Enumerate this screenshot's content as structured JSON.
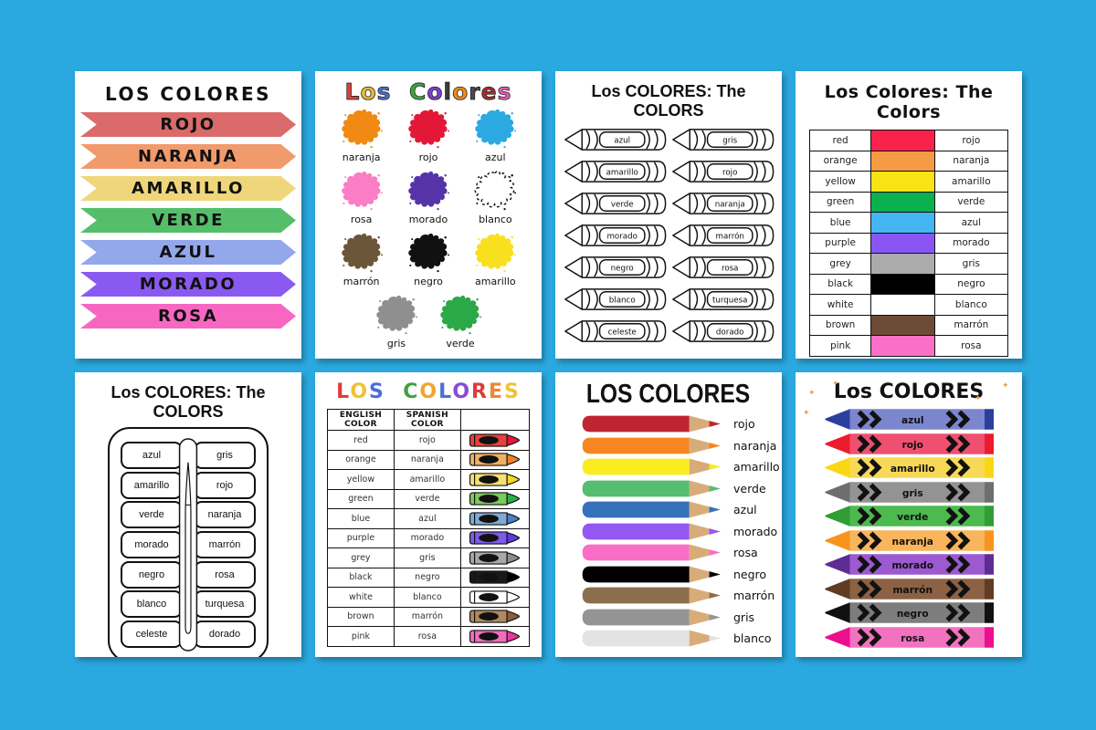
{
  "canvas": {
    "background": "#2AA9E0",
    "card_background": "#FFFFFF"
  },
  "page1": {
    "title": "LOS COLORES",
    "items": [
      {
        "label": "ROJO",
        "color": "#DB6B6B"
      },
      {
        "label": "NARANJA",
        "color": "#F19A6C"
      },
      {
        "label": "AMARILLO",
        "color": "#EFD67B"
      },
      {
        "label": "VERDE",
        "color": "#55BE6B"
      },
      {
        "label": "AZUL",
        "color": "#93A8EB"
      },
      {
        "label": "MORADO",
        "color": "#8A5AF0"
      },
      {
        "label": "ROSA",
        "color": "#F767C2"
      }
    ]
  },
  "page2": {
    "title": "Los Colores",
    "letter_colors": [
      "#D94040",
      "#E8B93A",
      "#4A6FD1",
      null,
      "#3FA23F",
      "#7B3FD1",
      "#3A3A3A",
      "#F08A14",
      "#4A4A4A",
      "#A53030",
      "#E85BB5"
    ],
    "items": [
      {
        "label": "naranja",
        "color": "#F08A14",
        "outline": false
      },
      {
        "label": "rojo",
        "color": "#E31837",
        "outline": false
      },
      {
        "label": "azul",
        "color": "#2BA9E0",
        "outline": false
      },
      {
        "label": "rosa",
        "color": "#FB7DC5",
        "outline": false
      },
      {
        "label": "morado",
        "color": "#5733A9",
        "outline": false
      },
      {
        "label": "blanco",
        "color": "#FFFFFF",
        "outline": true
      },
      {
        "label": "marrón",
        "color": "#6C563A",
        "outline": false
      },
      {
        "label": "negro",
        "color": "#111111",
        "outline": false
      },
      {
        "label": "amarillo",
        "color": "#F9E01E",
        "outline": false
      },
      {
        "label": "gris",
        "color": "#8F8F8F",
        "outline": false
      },
      {
        "label": "verde",
        "color": "#2BA847",
        "outline": false
      }
    ]
  },
  "page3": {
    "title": "Los COLORES: The COLORS",
    "left": [
      "azul",
      "amarillo",
      "verde",
      "morado",
      "negro",
      "blanco",
      "celeste"
    ],
    "right": [
      "gris",
      "rojo",
      "naranja",
      "marrón",
      "rosa",
      "turquesa",
      "dorado"
    ]
  },
  "page4": {
    "title": "Los Colores: The Colors",
    "rows": [
      {
        "english": "red",
        "spanish": "rojo",
        "color": "#F8224B"
      },
      {
        "english": "orange",
        "spanish": "naranja",
        "color": "#F59B44"
      },
      {
        "english": "yellow",
        "spanish": "amarillo",
        "color": "#F8E414"
      },
      {
        "english": "green",
        "spanish": "verde",
        "color": "#0CB04E"
      },
      {
        "english": "blue",
        "spanish": "azul",
        "color": "#45B6F4"
      },
      {
        "english": "purple",
        "spanish": "morado",
        "color": "#8956F3"
      },
      {
        "english": "grey",
        "spanish": "gris",
        "color": "#ABABAB"
      },
      {
        "english": "black",
        "spanish": "negro",
        "color": "#000000"
      },
      {
        "english": "white",
        "spanish": "blanco",
        "color": "#FFFFFF"
      },
      {
        "english": "brown",
        "spanish": "marrón",
        "color": "#6D4B35"
      },
      {
        "english": "pink",
        "spanish": "rosa",
        "color": "#FA70C8"
      }
    ]
  },
  "page5": {
    "title": "Los COLORES: The COLORS",
    "left": [
      "azul",
      "amarillo",
      "verde",
      "morado",
      "negro",
      "blanco",
      "celeste"
    ],
    "right": [
      "gris",
      "rojo",
      "naranja",
      "marrón",
      "rosa",
      "turquesa",
      "dorado"
    ]
  },
  "page6": {
    "title": "LOS COLORES",
    "letter_colors": [
      "#E03A3A",
      "#F0C233",
      "#4A6FD6",
      null,
      "#3FA23F",
      "#F0A52F",
      "#4A6FD6",
      "#8A4AD6",
      "#E03A3A",
      "#F0862F",
      "#F0C233"
    ],
    "headers": {
      "english": "ENGLISH COLOR",
      "spanish": "SPANISH COLOR"
    },
    "rows": [
      {
        "english": "red",
        "spanish": "rojo",
        "body": "#E8413C",
        "tip": "#E31837"
      },
      {
        "english": "orange",
        "spanish": "naranja",
        "body": "#EFB066",
        "tip": "#F0812C"
      },
      {
        "english": "yellow",
        "spanish": "amarillo",
        "body": "#F5E070",
        "tip": "#F5D820"
      },
      {
        "english": "green",
        "spanish": "verde",
        "body": "#7CC95E",
        "tip": "#2FAD4A"
      },
      {
        "english": "blue",
        "spanish": "azul",
        "body": "#7FAAD4",
        "tip": "#4A7FC1"
      },
      {
        "english": "purple",
        "spanish": "morado",
        "body": "#7C5CE8",
        "tip": "#5E3BD8"
      },
      {
        "english": "grey",
        "spanish": "gris",
        "body": "#A8A8A8",
        "tip": "#8C8C8C"
      },
      {
        "english": "black",
        "spanish": "negro",
        "body": "#1A1A1A",
        "tip": "#000000"
      },
      {
        "english": "white",
        "spanish": "blanco",
        "body": "#FFFFFF",
        "tip": "#FFFFFF"
      },
      {
        "english": "brown",
        "spanish": "marrón",
        "body": "#B08A5E",
        "tip": "#8A5E3A"
      },
      {
        "english": "pink",
        "spanish": "rosa",
        "body": "#F06CC0",
        "tip": "#E8389E"
      }
    ]
  },
  "page7": {
    "title": "LOS COLORES",
    "wood_color": "#D8AC79",
    "items": [
      {
        "label": "rojo",
        "color": "#BE2431"
      },
      {
        "label": "naranja",
        "color": "#F6861F"
      },
      {
        "label": "amarillo",
        "color": "#F9ED21"
      },
      {
        "label": "verde",
        "color": "#54BD70"
      },
      {
        "label": "azul",
        "color": "#3672B9"
      },
      {
        "label": "morado",
        "color": "#9458F2"
      },
      {
        "label": "rosa",
        "color": "#FA6EC7"
      },
      {
        "label": "negro",
        "color": "#000000"
      },
      {
        "label": "marrón",
        "color": "#8C6E4D"
      },
      {
        "label": "gris",
        "color": "#949494"
      },
      {
        "label": "blanco",
        "color": "#E3E3E3"
      }
    ]
  },
  "page8": {
    "title": "Los COLORES",
    "sparkle_color": "#E8A33D",
    "items": [
      {
        "label": "azul",
        "body": "#7B86CF",
        "tip": "#2B3F9E"
      },
      {
        "label": "rojo",
        "body": "#EF5070",
        "tip": "#EC1C2E"
      },
      {
        "label": "amarillo",
        "body": "#F7D957",
        "tip": "#F9D813"
      },
      {
        "label": "gris",
        "body": "#939393",
        "tip": "#6E6E6E"
      },
      {
        "label": "verde",
        "body": "#4CBA4E",
        "tip": "#2E9E35"
      },
      {
        "label": "naranja",
        "body": "#F9B55C",
        "tip": "#F7941D"
      },
      {
        "label": "morado",
        "body": "#9C59D0",
        "tip": "#5F2D91"
      },
      {
        "label": "marrón",
        "body": "#8C6144",
        "tip": "#5F3C22"
      },
      {
        "label": "negro",
        "body": "#7D7D7D",
        "tip": "#111111"
      },
      {
        "label": "rosa",
        "body": "#F272C0",
        "tip": "#EC0F8E"
      }
    ]
  }
}
